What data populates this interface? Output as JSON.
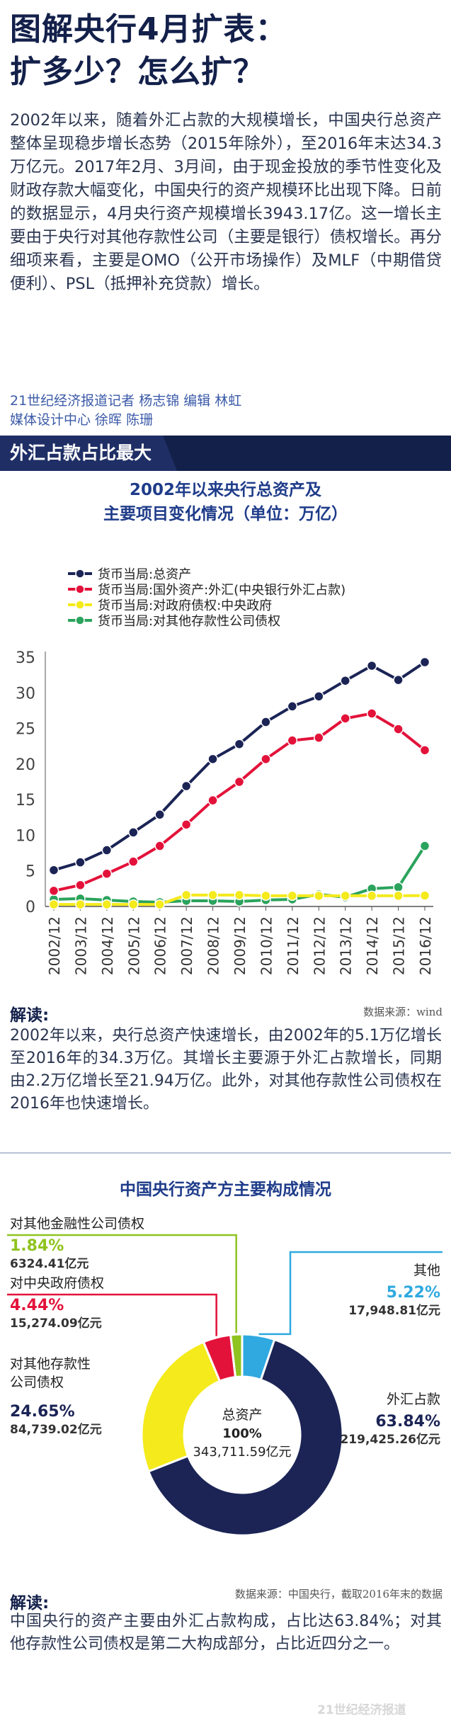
{
  "header": {
    "title_line1": "图解央行4月扩表：",
    "title_line2": "扩多少？怎么扩？"
  },
  "intro": "2002年以来，随着外汇占款的大规模增长，中国央行总资产整体呈现稳步增长态势（2015年除外），至2016年末达34.3万亿元。2017年2月、3月间，由于现金投放的季节性变化及财政存款大幅变化，中国央行的资产规模环比出现下降。日前的数据显示，4月央行资产规模增长3943.17亿。这一增长主要由于央行对其他存款性公司（主要是银行）债权增长。再分细项来看，主要是OMO（公开市场操作）及MLF（中期借贷便利）、PSL（抵押补充贷款）增长。",
  "credits": {
    "line1": "21世纪经济报道记者 杨志锦  编辑 林虹",
    "line2": "媒体设计中心 徐晖 陈珊"
  },
  "section": {
    "title": "外汇占款占比最大"
  },
  "line_chart_block": {
    "title_line1": "2002年以来央行总资产及",
    "title_line2": "主要项目变化情况（单位：万亿）",
    "reading_label": "解读:",
    "source": "数据来源：wind",
    "reading_text": "2002年以来，央行总资产快速增长，由2002年的5.1万亿增长至2016年的34.3万亿。其增长主要源于外汇占款增长，同期由2.2万亿增长至21.94万亿。此外，对其他存款性公司债权在2016年也快速增长。"
  },
  "pie_block": {
    "title": "中国央行资产方主要构成情况",
    "center_label": "总资产",
    "center_pct": "100%",
    "center_amount": "343,711.59亿元",
    "reading_label": "解读:",
    "source": "数据来源：中国央行，截取2016年末的数据",
    "reading_text": "中国央行的资产主要由外汇占款构成，占比达63.84%；对其他存款性公司债权是第二大构成部分，占比近四分之一。",
    "labels": {
      "other_fin": "对其他金融性公司债权",
      "other_fin_pct": "1.84%",
      "other_fin_amt": "6324.41亿元",
      "gov": "对中央政府债权",
      "gov_pct": "4.44%",
      "gov_amt": "15,274.09亿元",
      "odc_line1": "对其他存款性",
      "odc_line2": "公司债权",
      "odc_pct": "24.65%",
      "odc_amt": "84,739.02亿元",
      "other": "其他",
      "other_pct": "5.22%",
      "other_amt": "17,948.81亿元",
      "fx": "外汇占款",
      "fx_pct": "63.84%",
      "fx_amt": "219,425.26亿元"
    }
  },
  "watermark": "21世纪经济报道",
  "colors": {
    "navy": "#1b2455",
    "red": "#e3123a",
    "yellow": "#f4ea1c",
    "green": "#2aa35c",
    "blue": "#2fa9e0",
    "lime": "#8fc31f"
  },
  "chart_data": [
    {
      "type": "line",
      "title": "2002年以来央行总资产及主要项目变化情况（单位：万亿）",
      "x": [
        "2002/12",
        "2003/12",
        "2004/12",
        "2005/12",
        "2006/12",
        "2007/12",
        "2008/12",
        "2009/12",
        "2010/12",
        "2011/12",
        "2012/12",
        "2013/12",
        "2014/12",
        "2015/12",
        "2016/12"
      ],
      "ylim": [
        0,
        35
      ],
      "yticks": [
        0,
        5,
        10,
        15,
        20,
        25,
        30,
        35
      ],
      "legend_position": "top-left",
      "grid": false,
      "series": [
        {
          "name": "货币当局:总资产",
          "color": "#1b2455",
          "values": [
            5.1,
            6.2,
            7.9,
            10.4,
            12.9,
            16.9,
            20.7,
            22.8,
            25.9,
            28.1,
            29.5,
            31.7,
            33.8,
            31.8,
            34.3
          ]
        },
        {
          "name": "货币当局:国外资产:外汇(中央银行外汇占款)",
          "color": "#e3123a",
          "values": [
            2.2,
            3.0,
            4.6,
            6.3,
            8.5,
            11.5,
            14.9,
            17.5,
            20.7,
            23.3,
            23.7,
            26.4,
            27.1,
            24.9,
            21.94
          ]
        },
        {
          "name": "货币当局:对政府债权:中央政府",
          "color": "#f4ea1c",
          "values": [
            0.29,
            0.29,
            0.29,
            0.29,
            0.29,
            1.6,
            1.6,
            1.6,
            1.5,
            1.5,
            1.5,
            1.5,
            1.5,
            1.5,
            1.53
          ]
        },
        {
          "name": "货币当局:对其他存款性公司债权",
          "color": "#2aa35c",
          "values": [
            1.0,
            1.1,
            0.9,
            0.7,
            0.6,
            0.8,
            0.8,
            0.7,
            0.9,
            1.0,
            1.7,
            1.3,
            2.5,
            2.7,
            8.5
          ]
        }
      ]
    },
    {
      "type": "pie",
      "title": "中国央行资产方主要构成情况",
      "categories": [
        "外汇占款",
        "对其他存款性公司债权",
        "对中央政府债权",
        "对其他金融性公司债权",
        "其他"
      ],
      "values": [
        63.84,
        24.65,
        4.44,
        1.84,
        5.22
      ],
      "amounts": [
        219425.26,
        84739.02,
        15274.09,
        6324.41,
        17948.81
      ],
      "unit": "亿元",
      "total_amount": 343711.59,
      "style": "donut",
      "colors": [
        "#1b2455",
        "#f4ea1c",
        "#e3123a",
        "#8fc31f",
        "#2fa9e0"
      ]
    }
  ]
}
